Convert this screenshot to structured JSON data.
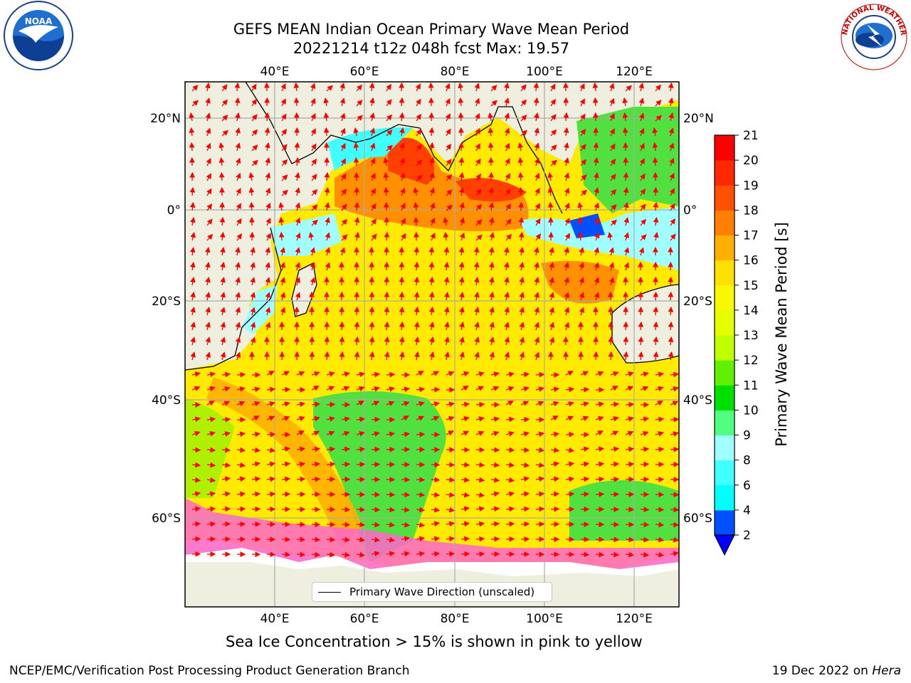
{
  "title": {
    "line1": "GEFS MEAN Indian Ocean Primary Wave Mean Period",
    "line2": "20221214 t12z 048h fcst   Max: 19.57"
  },
  "map": {
    "lon_labels_top": [
      "40°E",
      "60°E",
      "80°E",
      "100°E",
      "120°E"
    ],
    "lon_labels_bottom": [
      "40°E",
      "60°E",
      "80°E",
      "100°E",
      "120°E"
    ],
    "lat_labels_left": [
      "20°N",
      "0°",
      "20°S",
      "40°S",
      "60°S"
    ],
    "lat_labels_right": [
      "20°N",
      "0°",
      "20°S",
      "40°S",
      "60°S"
    ],
    "grid": true,
    "arrow_color": "#ff0000",
    "land_color": "#efefdf"
  },
  "colorbar": {
    "label": "Primary Wave Mean Period [s]",
    "ticks": [
      "2",
      "4",
      "6",
      "8",
      "9",
      "10",
      "11",
      "12",
      "13",
      "14",
      "15",
      "16",
      "17",
      "18",
      "19",
      "20",
      "21"
    ],
    "colors": [
      "#0050ff",
      "#00ffff",
      "#40ffff",
      "#a0ffff",
      "#50ff80",
      "#00e000",
      "#60f000",
      "#c0ff00",
      "#e6ff00",
      "#f8f800",
      "#ffe000",
      "#ffb000",
      "#ff8000",
      "#ff5000",
      "#ff2800",
      "#ff0000"
    ],
    "extend_color": "#0000ff"
  },
  "legend": {
    "label": "Primary Wave Direction (unscaled)"
  },
  "subtitle": "Sea Ice Concentration > 15% is shown in pink to yellow",
  "footer": {
    "left": "NCEP/EMC/Verification Post Processing Product Generation Branch",
    "right_date": "19 Dec 2022 on",
    "right_host": "Hera"
  },
  "logos": {
    "noaa_text": "NOAA",
    "nws_text": "NATIONAL WEATHER SERVICE"
  }
}
